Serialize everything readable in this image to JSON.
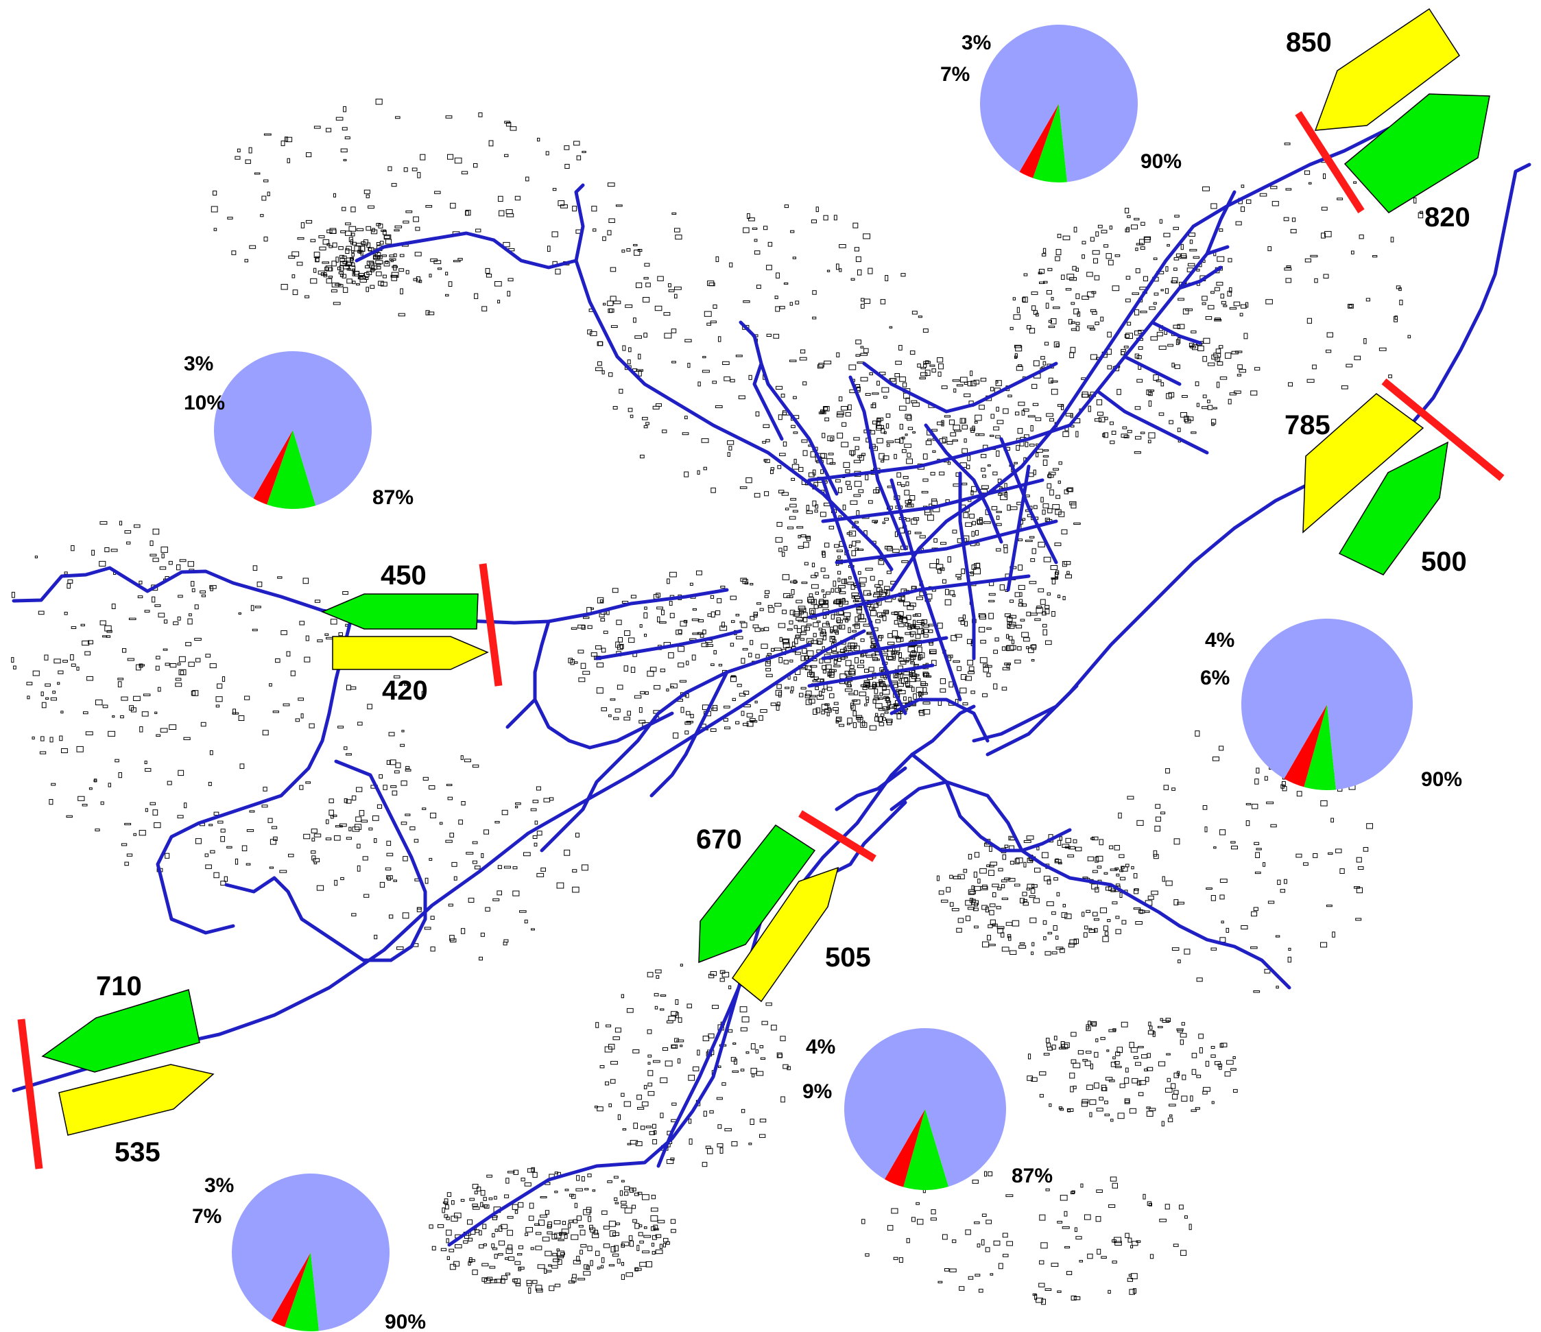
{
  "colors": {
    "road": "#1f1fc4",
    "building": "#000000",
    "counter_line": "#ff1a1a",
    "inbound_arrow": "#00ee00",
    "outbound_arrow": "#ffff00",
    "pie_main": "#9aa0ff",
    "pie_green": "#00ee00",
    "pie_red": "#ff0000"
  },
  "stations": [
    {
      "id": "north-east",
      "green_count": "820",
      "yellow_count": "850"
    },
    {
      "id": "east",
      "green_count": "500",
      "yellow_count": "785"
    },
    {
      "id": "west",
      "green_count": "450",
      "yellow_count": "420"
    },
    {
      "id": "south",
      "green_count": "670",
      "yellow_count": "505"
    },
    {
      "id": "south-west",
      "green_count": "710",
      "yellow_count": "535"
    }
  ],
  "pies": [
    {
      "id": "north",
      "slices": [
        {
          "label": "90%",
          "value": 90,
          "color": "#9aa0ff"
        },
        {
          "label": "7%",
          "value": 7,
          "color": "#00ee00"
        },
        {
          "label": "3%",
          "value": 3,
          "color": "#ff0000"
        }
      ]
    },
    {
      "id": "west",
      "slices": [
        {
          "label": "87%",
          "value": 87,
          "color": "#9aa0ff"
        },
        {
          "label": "10%",
          "value": 10,
          "color": "#00ee00"
        },
        {
          "label": "3%",
          "value": 3,
          "color": "#ff0000"
        }
      ]
    },
    {
      "id": "east",
      "slices": [
        {
          "label": "90%",
          "value": 90,
          "color": "#9aa0ff"
        },
        {
          "label": "6%",
          "value": 6,
          "color": "#00ee00"
        },
        {
          "label": "4%",
          "value": 4,
          "color": "#ff0000"
        }
      ]
    },
    {
      "id": "south",
      "slices": [
        {
          "label": "87%",
          "value": 87,
          "color": "#9aa0ff"
        },
        {
          "label": "9%",
          "value": 9,
          "color": "#00ee00"
        },
        {
          "label": "4%",
          "value": 4,
          "color": "#ff0000"
        }
      ]
    },
    {
      "id": "south-west",
      "slices": [
        {
          "label": "90%",
          "value": 90,
          "color": "#9aa0ff"
        },
        {
          "label": "7%",
          "value": 7,
          "color": "#00ee00"
        },
        {
          "label": "3%",
          "value": 3,
          "color": "#ff0000"
        }
      ]
    }
  ]
}
